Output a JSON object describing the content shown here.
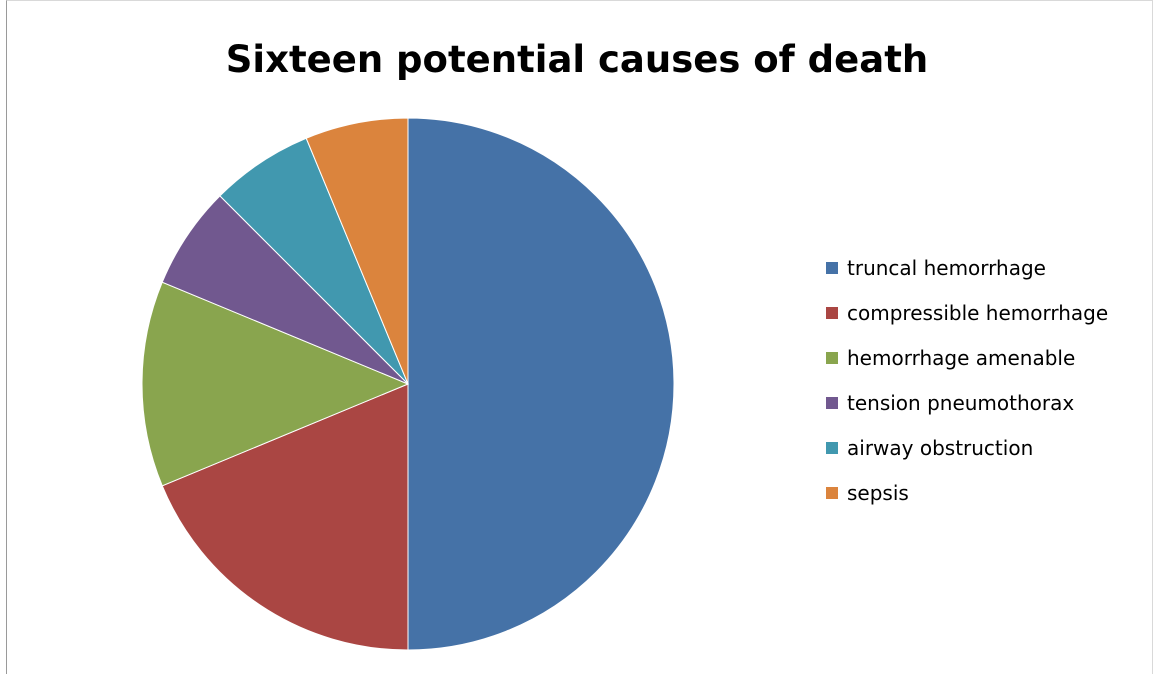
{
  "chart_data": {
    "type": "pie",
    "title": "Sixteen potential causes of death",
    "start_angle": "top, clockwise",
    "legend_position": "right",
    "slices": [
      {
        "name": "truncal hemorrhage",
        "value": 8,
        "color": "#4572A7"
      },
      {
        "name": "compressible hemorrhage",
        "value": 3,
        "color": "#AA4643"
      },
      {
        "name": "hemorrhage amenable",
        "value": 2,
        "color": "#89A54E"
      },
      {
        "name": "tension pneumothorax",
        "value": 1,
        "color": "#71588F"
      },
      {
        "name": "airway obstruction",
        "value": 1,
        "color": "#4198AF"
      },
      {
        "name": "sepsis",
        "value": 1,
        "color": "#DB843D"
      }
    ]
  }
}
